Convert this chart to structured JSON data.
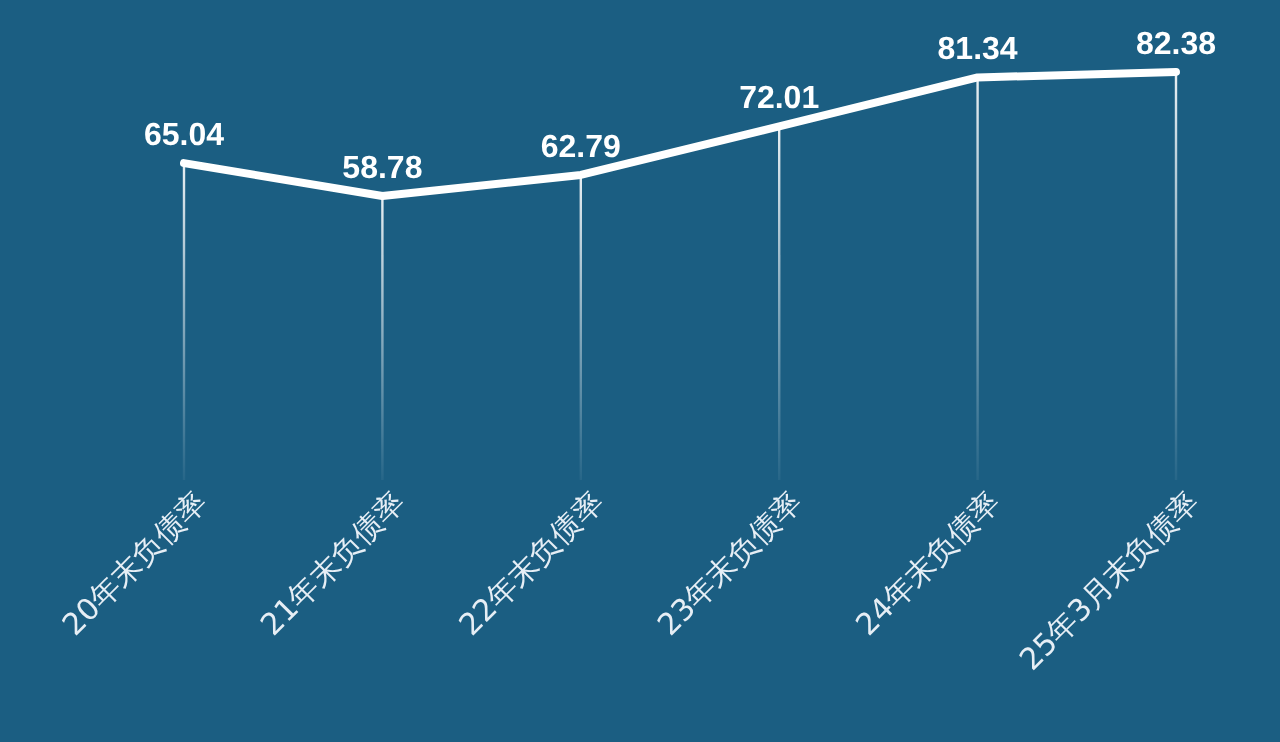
{
  "chart_data": {
    "type": "line",
    "categories": [
      "20年末负债率",
      "21年末负债率",
      "22年末负债率",
      "23年末负债率",
      "24年末负债率",
      "25年3月末负债率"
    ],
    "values": [
      65.04,
      58.78,
      62.79,
      72.01,
      81.34,
      82.38
    ],
    "color": "#ffffff",
    "data_labels": true,
    "marker": "none",
    "line_style": "solid",
    "grid": "x"
  }
}
